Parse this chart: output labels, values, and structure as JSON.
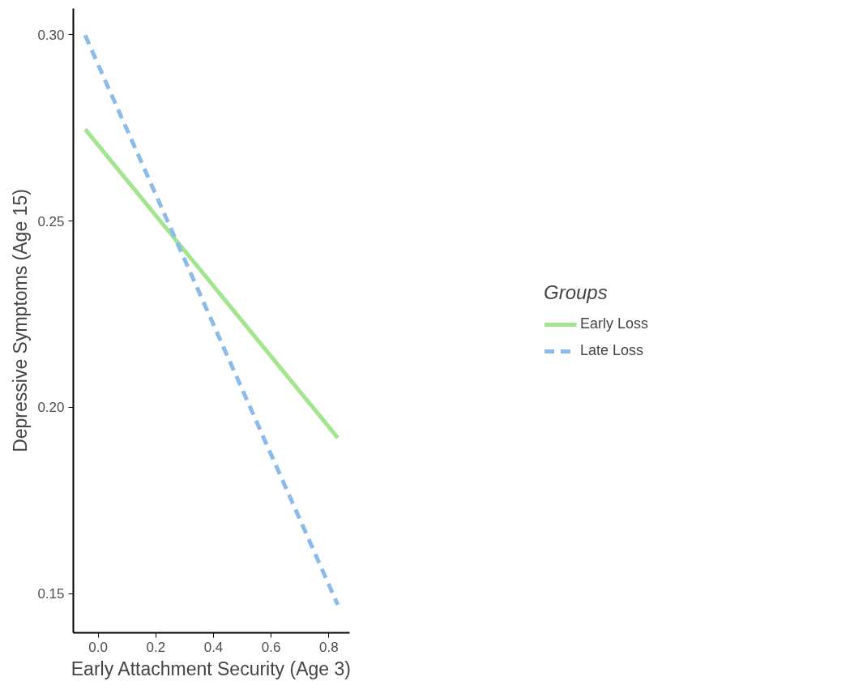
{
  "chart_data": {
    "type": "line",
    "xlabel": "Early Attachment Security (Age 3)",
    "ylabel": "Depressive Symptoms (Age 15)",
    "legend_title": "Groups",
    "x": [
      -0.045,
      0.831
    ],
    "series": [
      {
        "name": "Early Loss",
        "color": "#a3e48f",
        "values": [
          0.2746,
          0.1918
        ],
        "line_style": "solid"
      },
      {
        "name": "Late Loss",
        "color": "#8dbbe9",
        "values": [
          0.2998,
          0.147
        ],
        "line_style": "dashed"
      }
    ],
    "xlim": [
      -0.086,
      0.872
    ],
    "ylim": [
      0.1395,
      0.307
    ],
    "xticks": [
      {
        "value": 0,
        "label": "0.0"
      },
      0.2,
      0.4,
      0.6,
      0.8
    ],
    "yticks": [
      0.15,
      {
        "value": 0.2,
        "label": "0.20"
      },
      0.25,
      {
        "value": 0.3,
        "label": "0.30"
      }
    ],
    "grid": false,
    "legend": "right",
    "marker": "none"
  }
}
